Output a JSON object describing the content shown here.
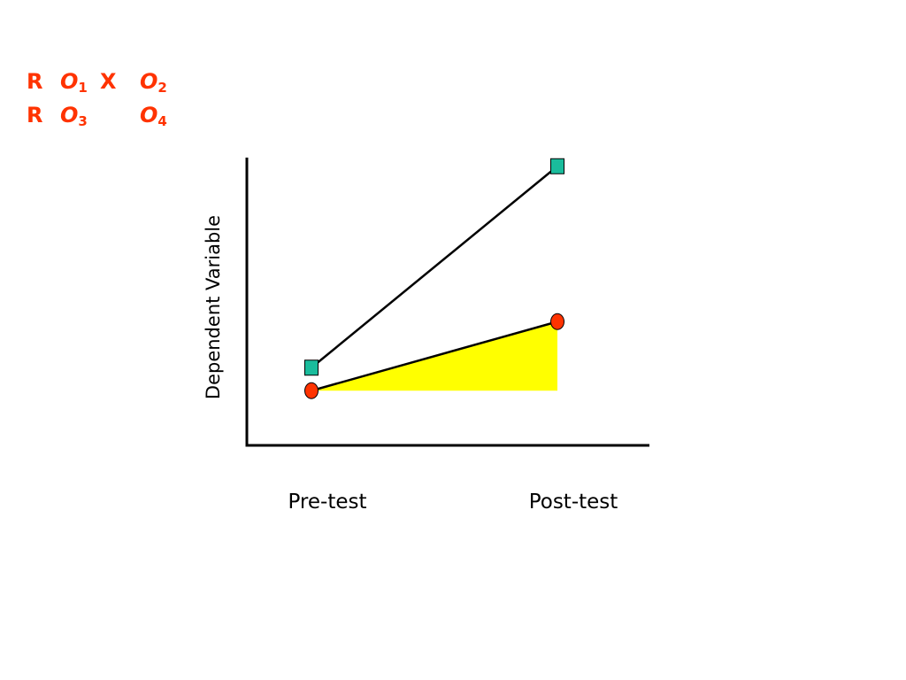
{
  "design": {
    "row1": {
      "r": "R",
      "obs1": "O",
      "obs1_sub": "1",
      "treatment": "X",
      "obs2": "O",
      "obs2_sub": "2"
    },
    "row2": {
      "r": "R",
      "obs1": "O",
      "obs1_sub": "3",
      "obs2": "O",
      "obs2_sub": "4"
    },
    "color": "#ff3300"
  },
  "chart_data": {
    "type": "line",
    "categories": [
      "Pre-test",
      "Post-test"
    ],
    "ylabel": "Dependent Variable",
    "xlabel": "",
    "ylim": [
      0,
      10
    ],
    "grid": false,
    "series": [
      {
        "marker": "square",
        "color": "#1abc9c",
        "values": [
          2.7,
          9.7
        ]
      },
      {
        "marker": "circle",
        "color": "#ff3300",
        "values": [
          1.9,
          4.3
        ]
      }
    ],
    "shaded_region": {
      "description_color": "#ffff00",
      "polygon": [
        [
          "Pre-test",
          1.9
        ],
        [
          "Post-test",
          4.3
        ],
        [
          "Post-test",
          1.9
        ]
      ]
    }
  }
}
